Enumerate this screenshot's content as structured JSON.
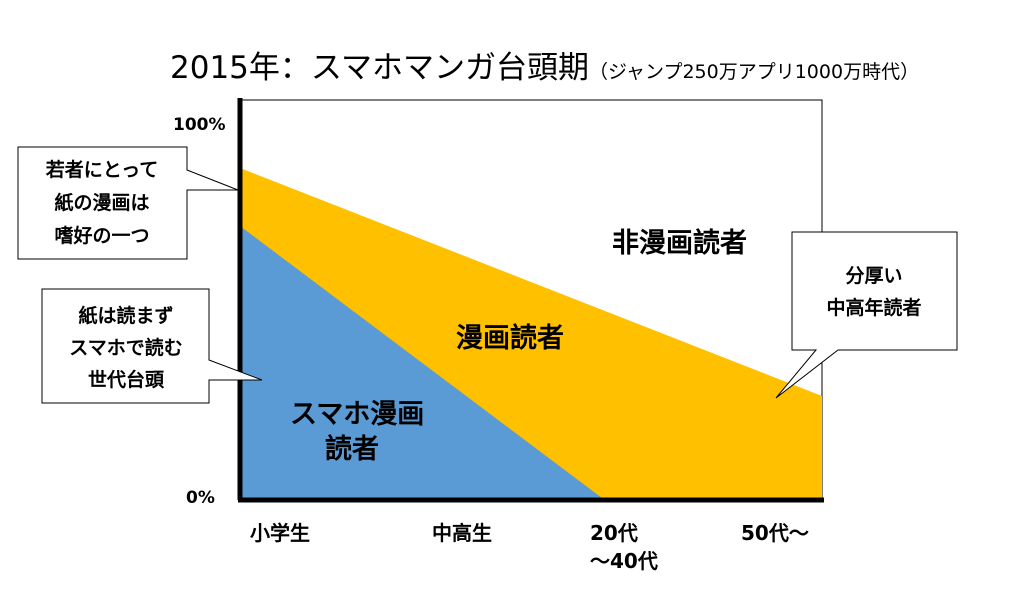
{
  "title": {
    "main": "2015年：スマホマンガ台頭期",
    "sub": "（ジャンプ250万アプリ1000万時代）"
  },
  "axis": {
    "y_top": "100%",
    "y_bottom": "0%",
    "x_labels": [
      {
        "line1": "小学生",
        "line2": ""
      },
      {
        "line1": "中高生",
        "line2": ""
      },
      {
        "line1": "20代",
        "line2": "～40代"
      },
      {
        "line1": "50代～",
        "line2": ""
      }
    ]
  },
  "regions": {
    "non_reader": {
      "line1": "非漫画読者",
      "line2": ""
    },
    "manga_reader": {
      "line1": "漫画読者",
      "line2": ""
    },
    "smartphone_reader": {
      "line1": "スマホ漫画",
      "line2": "読者"
    }
  },
  "callouts": {
    "young_paper": [
      "若者にとって",
      "紙の漫画は",
      "嗜好の一つ"
    ],
    "new_gen": [
      "紙は読まず",
      "スマホで読む",
      "世代台頭"
    ],
    "middle_aged": [
      "分厚い",
      "中高年読者"
    ]
  },
  "colors": {
    "manga_reader": "#FFC000",
    "smartphone_reader": "#5B9BD5",
    "axis": "#000000"
  }
}
